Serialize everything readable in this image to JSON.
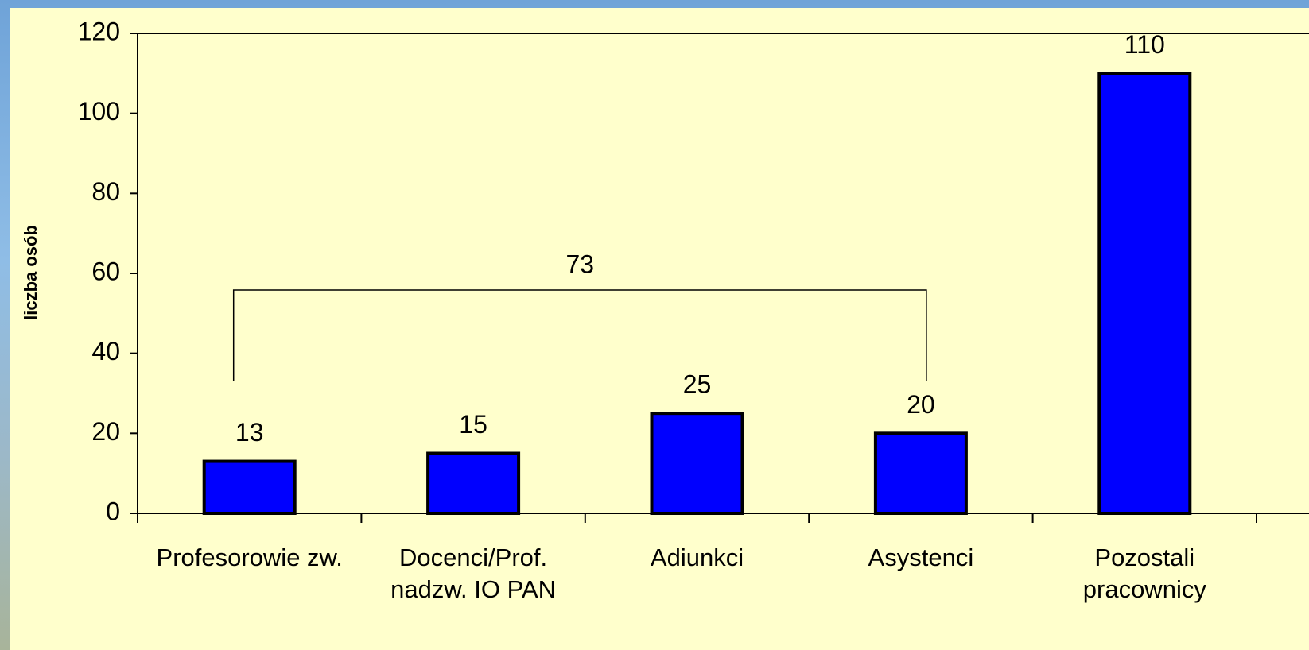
{
  "chart_data": {
    "type": "bar",
    "y_label": "liczba osób",
    "categories": [
      "Profesorowie zw.",
      "Docenci/Prof. nadzw. IO PAN",
      "Adiunkci",
      "Asystenci",
      "Pozostali pracownicy"
    ],
    "values": [
      13,
      15,
      25,
      20,
      110
    ],
    "color": "#0000ff",
    "ylim": [
      0,
      120
    ],
    "yticks": [
      0,
      20,
      40,
      60,
      80,
      100,
      120
    ],
    "annotation": "73"
  }
}
